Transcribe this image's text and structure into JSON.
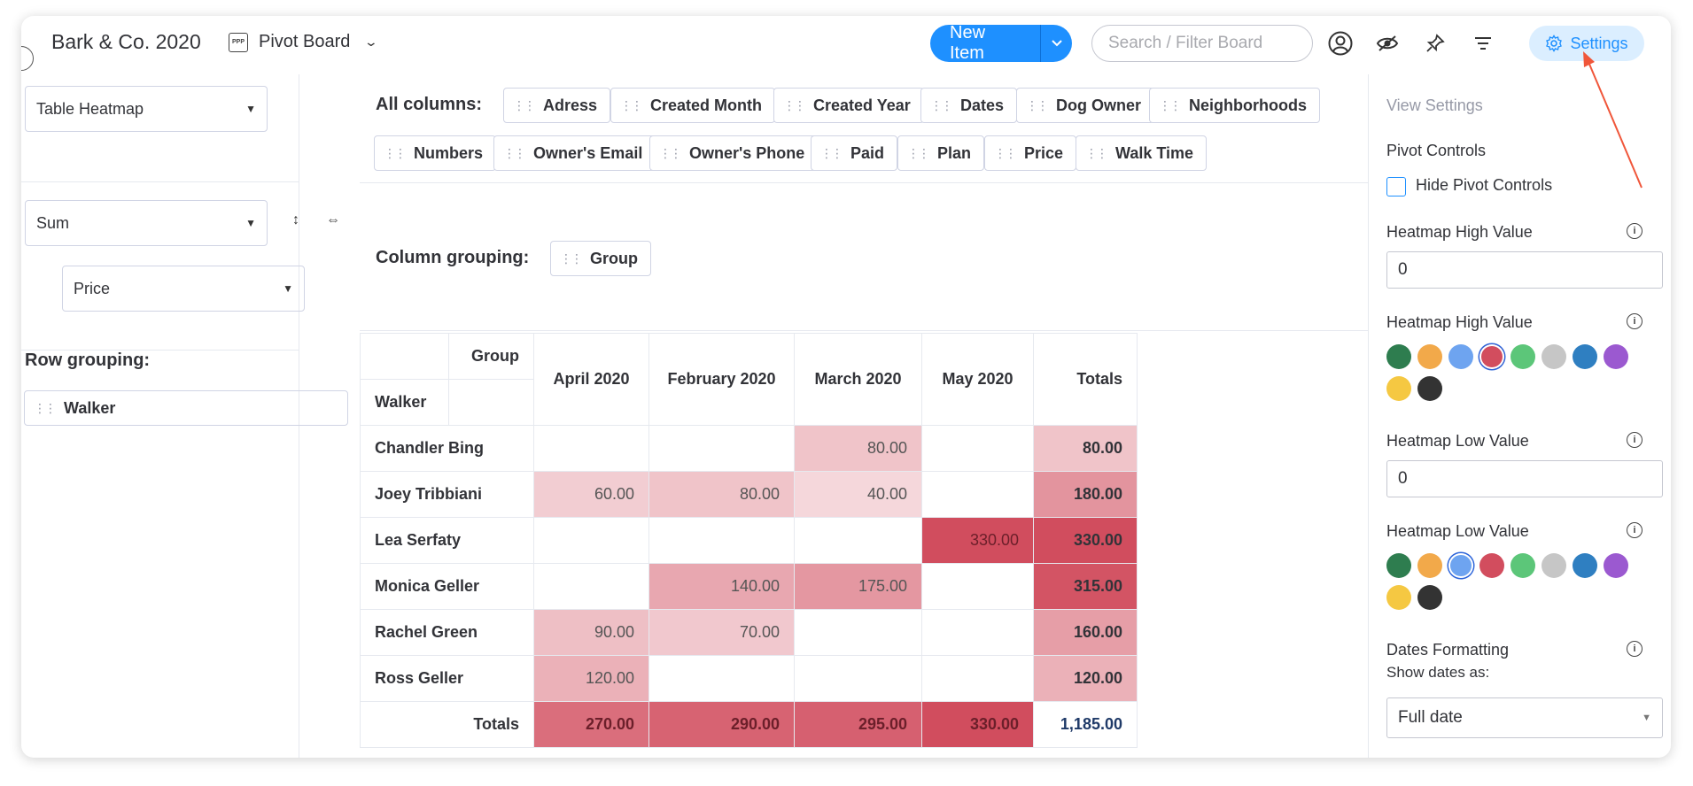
{
  "header": {
    "board_title": "Bark & Co. 2020",
    "view_icon_text": "PPP",
    "view_name": "Pivot Board",
    "new_item_label": "New Item",
    "search_placeholder": "Search / Filter Board",
    "settings_label": "Settings"
  },
  "left": {
    "visualization_select": "Table Heatmap",
    "aggregation_select": "Sum",
    "value_select": "Price",
    "row_grouping_label": "Row grouping:",
    "row_grouping_chip": "Walker"
  },
  "columns_area": {
    "all_columns_label": "All columns:",
    "chips": [
      "Adress",
      "Created Month",
      "Created Year",
      "Dates",
      "Dog Owner",
      "Neighborhoods",
      "Numbers",
      "Owner's Email",
      "Owner's Phone",
      "Paid",
      "Plan",
      "Price",
      "Walk Time"
    ],
    "column_grouping_label": "Column grouping:",
    "column_grouping_chip": "Group"
  },
  "table": {
    "corner_col_label": "Group",
    "corner_row_label": "Walker",
    "columns": [
      "April 2020",
      "February 2020",
      "March 2020",
      "May 2020",
      "Totals"
    ],
    "rows": [
      {
        "name": "Chandler Bing",
        "values": [
          "",
          "",
          "80.00",
          "",
          "80.00"
        ]
      },
      {
        "name": "Joey Tribbiani",
        "values": [
          "60.00",
          "80.00",
          "40.00",
          "",
          "180.00"
        ]
      },
      {
        "name": "Lea Serfaty",
        "values": [
          "",
          "",
          "",
          "330.00",
          "330.00"
        ]
      },
      {
        "name": "Monica Geller",
        "values": [
          "",
          "140.00",
          "175.00",
          "",
          "315.00"
        ]
      },
      {
        "name": "Rachel Green",
        "values": [
          "90.00",
          "70.00",
          "",
          "",
          "160.00"
        ]
      },
      {
        "name": "Ross Geller",
        "values": [
          "120.00",
          "",
          "",
          "",
          "120.00"
        ]
      }
    ],
    "totals_label": "Totals",
    "totals": [
      "270.00",
      "290.00",
      "295.00",
      "330.00",
      "1,185.00"
    ],
    "heatmap_high_color": "#d14d5e",
    "heatmap_low_color": "#ffffff"
  },
  "settings": {
    "view_settings_label": "View Settings",
    "pivot_controls_label": "Pivot Controls",
    "hide_pivot_controls_label": "Hide Pivot Controls",
    "hide_pivot_controls_checked": false,
    "high_value_label": "Heatmap High Value",
    "high_value": "0",
    "high_color_label": "Heatmap High Value",
    "low_value_label": "Heatmap Low Value",
    "low_value": "0",
    "low_color_label": "Heatmap Low Value",
    "swatch_colors": [
      "#2e7d4f",
      "#f2a94a",
      "#6ea4f0",
      "#d24d5e",
      "#5cc679",
      "#c6c6c6",
      "#2f7fc1",
      "#9b59d0",
      "#f5c842",
      "#333333"
    ],
    "high_selected_index": 3,
    "low_selected_index": 2,
    "dates_formatting_label": "Dates Formatting",
    "show_dates_as_label": "Show dates as:",
    "show_dates_as_value": "Full date"
  }
}
